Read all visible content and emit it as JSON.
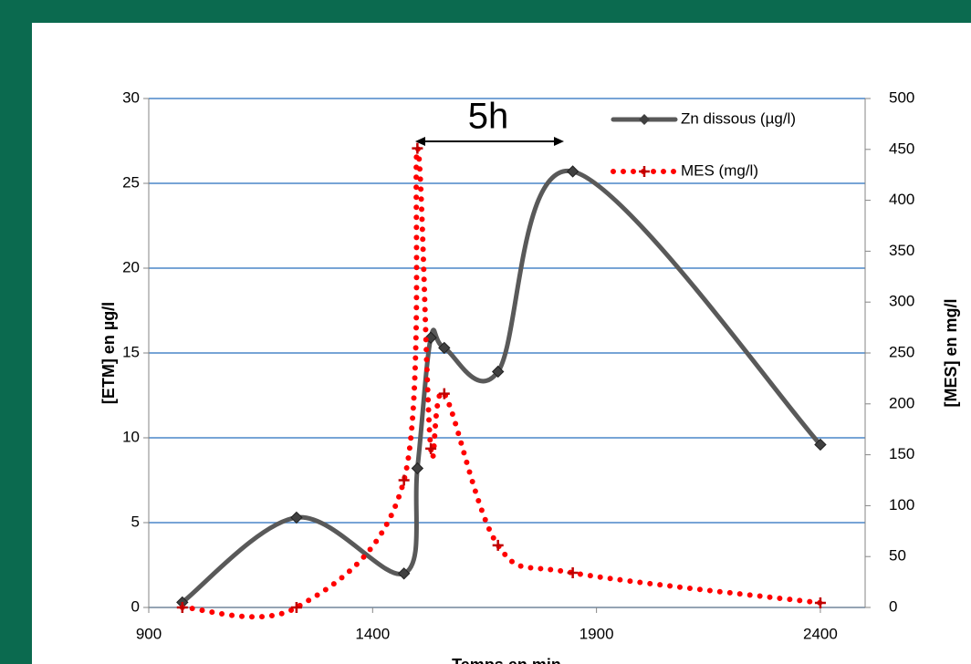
{
  "chart_data": {
    "type": "line",
    "x": [
      975,
      1230,
      1470,
      1500,
      1530,
      1560,
      1680,
      1847,
      2400
    ],
    "series": [
      {
        "name": "Zn dissous (µg/l)",
        "color": "#595959",
        "axis": "y",
        "values": [
          0.3,
          5.3,
          2.0,
          8.2,
          15.9,
          15.3,
          13.9,
          25.7,
          9.6
        ]
      },
      {
        "name": "MES (mg/l)",
        "color": "#ff0000",
        "axis": "y2",
        "values": [
          0,
          0,
          125,
          451,
          156,
          210,
          61,
          34,
          4.5
        ]
      }
    ],
    "xlim": [
      900,
      2500
    ],
    "xticks": [
      900,
      1400,
      1900,
      2400
    ],
    "ylim": [
      0,
      30
    ],
    "yticks": [
      0,
      5,
      10,
      15,
      20,
      25,
      30
    ],
    "y2lim": [
      0,
      500
    ],
    "y2ticks": [
      0,
      50,
      100,
      150,
      200,
      250,
      300,
      350,
      400,
      450,
      500
    ],
    "xlabel": "Temps en min",
    "ylabel": "[ETM] en µg/l",
    "y2label": "[MES] en mg/l",
    "annotation": "5h",
    "grid": true
  }
}
